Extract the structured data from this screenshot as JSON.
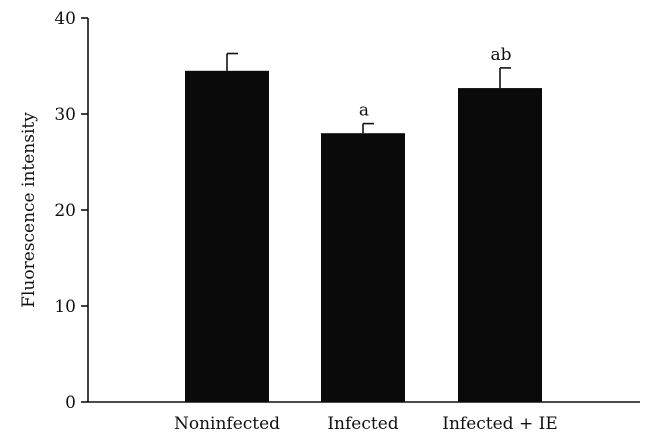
{
  "chart_data": {
    "type": "bar",
    "categories": [
      "Noninfected",
      "Infected",
      "Infected + IE"
    ],
    "values": [
      34.5,
      28.0,
      32.7
    ],
    "errors": [
      1.8,
      1.0,
      2.1
    ],
    "annotations": [
      "",
      "a",
      "ab"
    ],
    "title": "",
    "xlabel": "",
    "ylabel": "Fluorescence intensity",
    "ylim": [
      0,
      40
    ],
    "yticks": [
      0,
      10,
      20,
      30,
      40
    ],
    "grid": false,
    "bar_color": "#0a0a0a"
  }
}
